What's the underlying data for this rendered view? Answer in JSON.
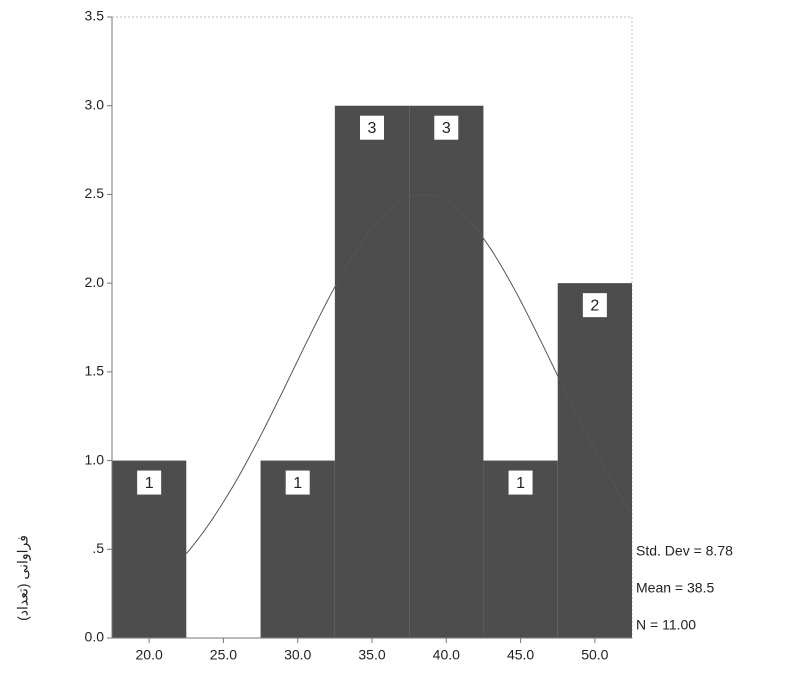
{
  "chart_data": {
    "type": "histogram",
    "y_label": "فراوانی (تعداد)",
    "bins": [
      17.5,
      22.5,
      27.5,
      32.5,
      37.5,
      42.5,
      47.5,
      52.5
    ],
    "values": [
      1,
      0,
      1,
      3,
      3,
      1,
      2
    ],
    "color": "#4d4d4d",
    "xlim": [
      17.5,
      52.5
    ],
    "xticks": [
      {
        "value": 20,
        "label": "20.0"
      },
      {
        "value": 25,
        "label": "25.0"
      },
      {
        "value": 30,
        "label": "30.0"
      },
      {
        "value": 35,
        "label": "35.0"
      },
      {
        "value": 40,
        "label": "40.0"
      },
      {
        "value": 45,
        "label": "45.0"
      },
      {
        "value": 50,
        "label": "50.0"
      }
    ],
    "ylim": [
      0,
      3.5
    ],
    "yticks": [
      {
        "value": 0,
        "label": "0.0"
      },
      {
        "value": 0.5,
        "label": ".5"
      },
      {
        "value": 1,
        "label": "1.0"
      },
      {
        "value": 1.5,
        "label": "1.5"
      },
      {
        "value": 2,
        "label": "2.0"
      },
      {
        "value": 2.5,
        "label": "2.5"
      },
      {
        "value": 3,
        "label": "3.0"
      },
      3.5
    ],
    "grid": false,
    "normal_curve": {
      "mean": 38.5,
      "std_dev": 8.78,
      "n": 11
    },
    "annotations": [
      "Std. Dev = 8.78",
      "Mean = 38.5",
      "N = 11.00"
    ]
  }
}
